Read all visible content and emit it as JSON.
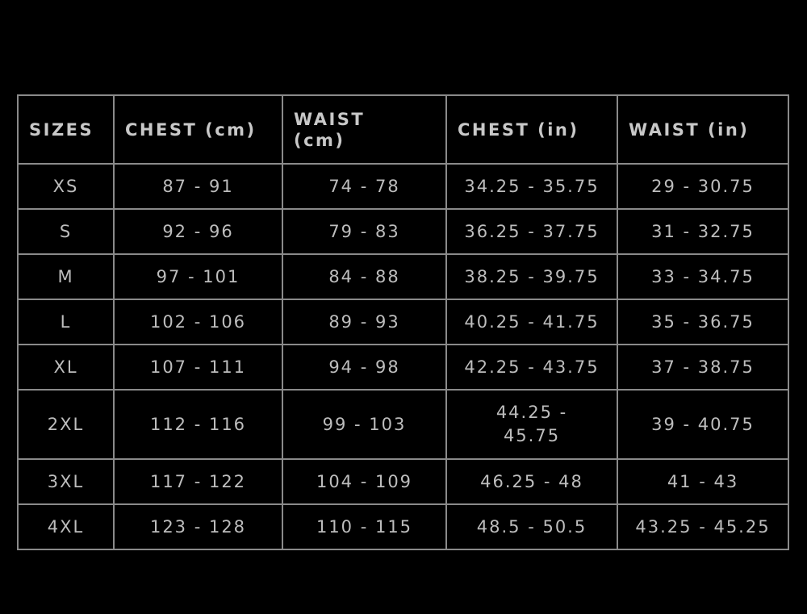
{
  "size_chart": {
    "headers": [
      "SIZES",
      "CHEST (cm)",
      "WAIST (cm)",
      "CHEST (in)",
      "WAIST (in)"
    ],
    "rows": [
      [
        "XS",
        "87 - 91",
        "74 - 78",
        "34.25 - 35.75",
        "29 - 30.75"
      ],
      [
        "S",
        "92 - 96",
        "79 - 83",
        "36.25 - 37.75",
        "31 - 32.75"
      ],
      [
        "M",
        "97 - 101",
        "84 - 88",
        "38.25 - 39.75",
        "33 - 34.75"
      ],
      [
        "L",
        "102 - 106",
        "89 - 93",
        "40.25 - 41.75",
        "35 - 36.75"
      ],
      [
        "XL",
        "107 - 111",
        "94 - 98",
        "42.25 - 43.75",
        "37 - 38.75"
      ],
      [
        "2XL",
        "112 - 116",
        "99 - 103",
        "44.25 - 45.75",
        "39 - 40.75"
      ],
      [
        "3XL",
        "117 - 122",
        "104 - 109",
        "46.25 - 48",
        "41 - 43"
      ],
      [
        "4XL",
        "123 - 128",
        "110 - 115",
        "48.5 - 50.5",
        "43.25 - 45.25"
      ]
    ],
    "colors": {
      "background": "#000000",
      "border": "#8a8a8a",
      "text": "#c4c4c4"
    }
  }
}
